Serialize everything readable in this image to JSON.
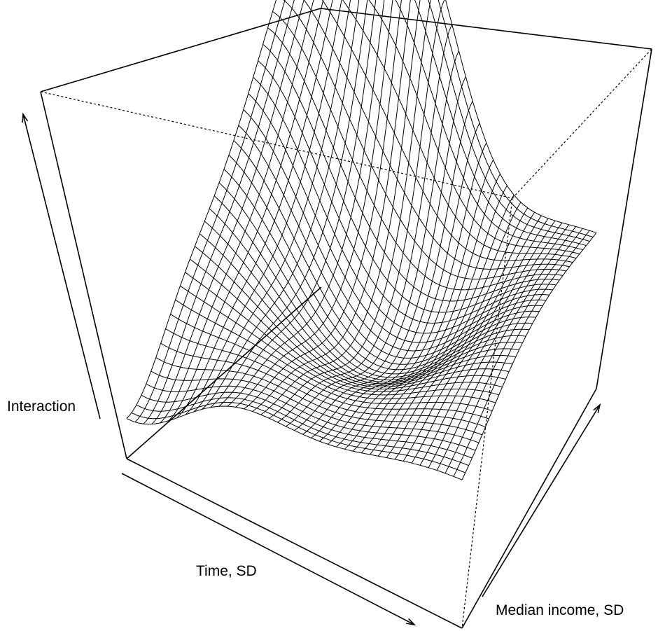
{
  "chart_data": {
    "type": "surface",
    "title": "",
    "xlabel": "Time, SD",
    "ylabel": "Median income, SD",
    "zlabel": "Interaction",
    "ticks": "none",
    "box": true,
    "axis_arrows": true,
    "mesh": "wireframe, ~40 x 40 grid lines",
    "line_color": "#000000",
    "background": "#ffffff",
    "surface_shape": "saddle-like surface: sharp peaks at the back-left and back corners, a deep trough through the middle, a rise toward the front-right corner; lowest at the left edge near the origin"
  }
}
